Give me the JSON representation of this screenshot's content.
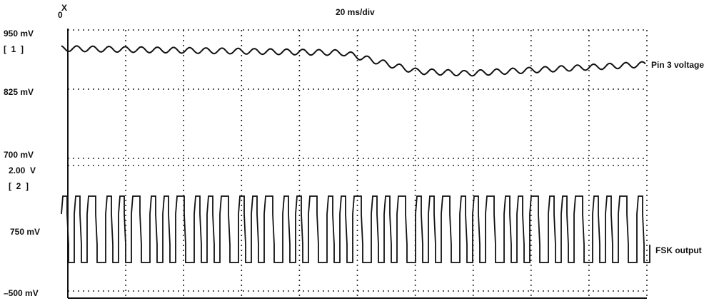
{
  "header": {
    "marker_top": "X",
    "marker_bottom": "0",
    "timebase": "20 ms/div"
  },
  "channel1": {
    "top_label": "950 mV",
    "id": "[  1  ]",
    "mid_label": "825 mV",
    "bottom_label": "700 mV",
    "trace_label": "Pin 3 voltage"
  },
  "channel2": {
    "scale": "2.00  V",
    "id": "[  2  ]",
    "offset_label": "750 mV",
    "bottom_label": "–500 mV",
    "trace_label": "FSK output"
  }
}
